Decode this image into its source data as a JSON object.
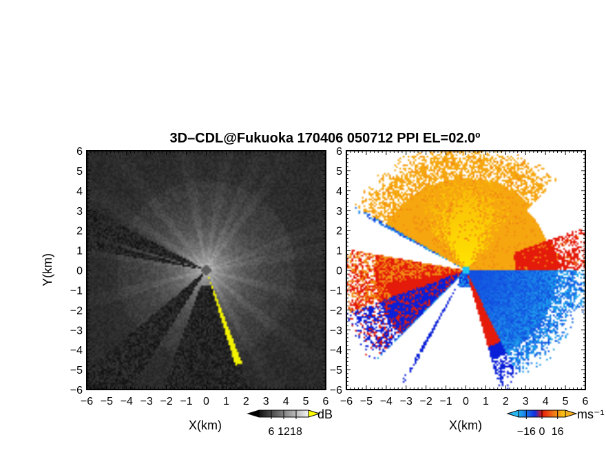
{
  "chart_data": [
    {
      "type": "heatmap",
      "title": "3D–CDL@Fukuoka 170406 050712 PPI EL=02.0º",
      "xlabel": "X(km)",
      "ylabel": "Y(km)",
      "xlim": [
        -6,
        6
      ],
      "ylim": [
        -6,
        6
      ],
      "x_ticks": [
        "−6",
        "−5",
        "−4",
        "−3",
        "−2",
        "−1",
        "0",
        "1",
        "2",
        "3",
        "4",
        "5",
        "6"
      ],
      "y_ticks": [
        "6",
        "5",
        "4",
        "3",
        "2",
        "1",
        "0",
        "−1",
        "−2",
        "−3",
        "−4",
        "−5",
        "−6"
      ],
      "colorbar": {
        "unit": "dB",
        "ticks": [
          "6",
          "12",
          "18"
        ],
        "range": [
          0,
          24
        ],
        "colormap": "grayscale"
      },
      "palette": {
        "low": "#000000",
        "high": "#ffffff",
        "clutter": "#f2f200",
        "center": "#5c5c5c"
      }
    },
    {
      "type": "heatmap",
      "title": "",
      "xlabel": "X(km)",
      "ylabel": "",
      "xlim": [
        -6,
        6
      ],
      "ylim": [
        -6,
        6
      ],
      "x_ticks": [
        "−6",
        "−5",
        "−4",
        "−3",
        "−2",
        "−1",
        "0",
        "1",
        "2",
        "3",
        "4",
        "5",
        "6"
      ],
      "y_ticks": [
        "6",
        "5",
        "4",
        "3",
        "2",
        "1",
        "0",
        "−1",
        "−2",
        "−3",
        "−4",
        "−5",
        "−6"
      ],
      "colorbar": {
        "unit": "ms⁻¹",
        "ticks": [
          "−16",
          "0",
          "16"
        ],
        "range": [
          -24,
          24
        ],
        "colormap": "doppler"
      },
      "palette": {
        "toward_dark": "#0a1fd8",
        "toward_light": "#22b2f0",
        "away_red": "#e41a0a",
        "away_orange": "#f28a14",
        "away_yellow": "#ffe600",
        "center": "#1ec8f0"
      }
    }
  ]
}
